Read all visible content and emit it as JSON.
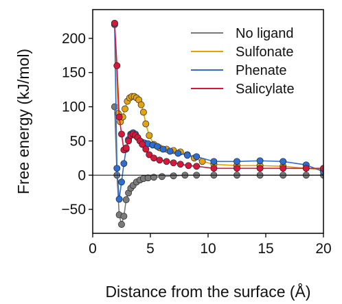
{
  "chart_data": {
    "type": "line",
    "title": "",
    "xlabel": "Distance from the surface (Å)",
    "ylabel": "Free energy (kJ/mol)",
    "xlim": [
      0,
      20
    ],
    "ylim": [
      -85,
      242
    ],
    "xticks": [
      0,
      5,
      10,
      15,
      20
    ],
    "yticks": [
      -50,
      0,
      50,
      100,
      150,
      200
    ],
    "xtick_labels": [
      "0",
      "5",
      "10",
      "15",
      "20"
    ],
    "ytick_labels": [
      "−50",
      "0",
      "50",
      "100",
      "150",
      "200"
    ],
    "grid": false,
    "zero_line": true,
    "legend_position": "top-right",
    "series": [
      {
        "name": "No ligand",
        "color": "#777777",
        "marker_color": "#7a7a7a",
        "x": [
          1.9,
          2.1,
          2.3,
          2.5,
          2.7,
          2.9,
          3.1,
          3.3,
          3.5,
          3.8,
          4.1,
          4.4,
          4.8,
          5.3,
          6.0,
          7.0,
          8.0,
          9.0,
          10.5,
          12.5,
          14.5,
          16.5,
          18.5,
          20.0
        ],
        "y": [
          100,
          0,
          -58,
          -72,
          -60,
          -36,
          -26,
          -19,
          -15,
          -10,
          -7,
          -5,
          -4,
          -3,
          -2,
          -1,
          0,
          0,
          0,
          0,
          0,
          0,
          0,
          0
        ]
      },
      {
        "name": "Sulfonate",
        "color": "#e8a100",
        "marker_color": "#e3a412",
        "x": [
          1.9,
          2.2,
          2.4,
          2.6,
          2.8,
          3.0,
          3.2,
          3.4,
          3.6,
          3.8,
          4.0,
          4.2,
          4.4,
          4.6,
          4.9,
          5.3,
          5.8,
          6.4,
          7.0,
          7.6,
          8.2,
          8.8,
          9.5,
          10.5,
          12.5,
          14.5,
          16.5,
          18.5,
          20.0
        ],
        "y": [
          222,
          90,
          78,
          85,
          97,
          108,
          113,
          115,
          115,
          113,
          110,
          103,
          92,
          75,
          58,
          45,
          40,
          38,
          36,
          34,
          30,
          25,
          20,
          16,
          14,
          14,
          13,
          10,
          8
        ]
      },
      {
        "name": "Phenate",
        "color": "#2d6dd3",
        "marker_color": "#2f6ed1",
        "x": [
          1.9,
          2.1,
          2.3,
          2.5,
          2.7,
          2.9,
          3.1,
          3.3,
          3.5,
          3.7,
          3.9,
          4.1,
          4.3,
          4.5,
          4.8,
          5.2,
          5.6,
          6.1,
          6.7,
          7.4,
          8.2,
          9.0,
          10.5,
          12.5,
          14.5,
          16.5,
          18.5,
          20.0
        ],
        "y": [
          220,
          10,
          -35,
          -10,
          17,
          38,
          52,
          60,
          62,
          60,
          55,
          50,
          48,
          47,
          46,
          44,
          42,
          38,
          35,
          32,
          29,
          27,
          20,
          20,
          21,
          20,
          15,
          5
        ]
      },
      {
        "name": "Salicylate",
        "color": "#d8143a",
        "marker_color": "#d5183c",
        "x": [
          1.9,
          2.1,
          2.3,
          2.5,
          2.7,
          2.9,
          3.1,
          3.3,
          3.5,
          3.7,
          3.9,
          4.1,
          4.3,
          4.6,
          4.9,
          5.3,
          5.8,
          6.4,
          7.0,
          7.6,
          8.3,
          9.0,
          10.5,
          12.5,
          14.5,
          16.5,
          18.5,
          20.0
        ],
        "y": [
          222,
          160,
          85,
          60,
          37,
          40,
          50,
          58,
          60,
          58,
          55,
          50,
          45,
          38,
          30,
          25,
          22,
          20,
          18,
          16,
          14,
          13,
          10,
          10,
          10,
          10,
          10,
          10
        ]
      }
    ]
  }
}
